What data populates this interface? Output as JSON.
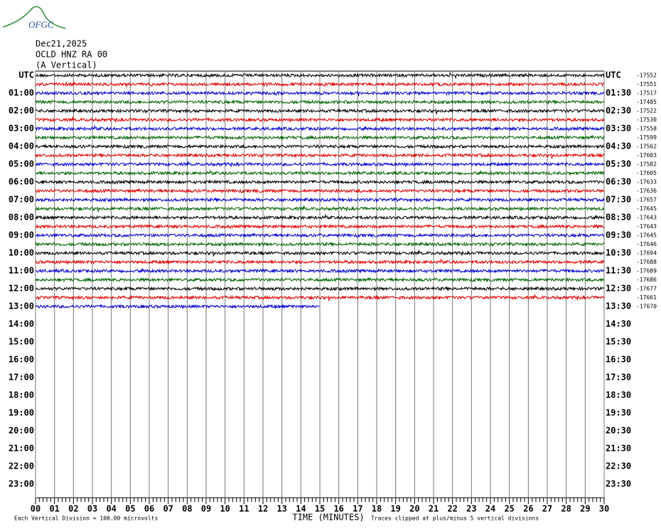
{
  "logo": "OFGC",
  "header": {
    "date": "Dec21,2025",
    "station": "OCLD HNZ RA 00",
    "component": "(A Vertical)"
  },
  "left_labels": [
    "UTC",
    "01:00",
    "02:00",
    "03:00",
    "04:00",
    "05:00",
    "06:00",
    "07:00",
    "08:00",
    "09:00",
    "10:00",
    "11:00",
    "12:00",
    "13:00",
    "14:00",
    "15:00",
    "16:00",
    "17:00",
    "18:00",
    "19:00",
    "20:00",
    "21:00",
    "22:00",
    "23:00"
  ],
  "right_labels": [
    "UTC",
    "01:30",
    "02:30",
    "03:30",
    "04:30",
    "05:30",
    "06:30",
    "07:30",
    "08:30",
    "09:30",
    "10:30",
    "11:30",
    "12:30",
    "13:30",
    "14:30",
    "15:30",
    "16:30",
    "17:30",
    "18:30",
    "19:30",
    "20:30",
    "21:30",
    "22:30",
    "23:30"
  ],
  "offsets": [
    -17552,
    -17551,
    -17517,
    -17485,
    -17522,
    -17530,
    -17558,
    -17599,
    -17562,
    -17603,
    -17582,
    -17605,
    -17633,
    -17636,
    -17657,
    -17645,
    -17643,
    -17643,
    -17645,
    -17646,
    -17694,
    -17688,
    -17689,
    -17686,
    -17677,
    -17661,
    -17670
  ],
  "x_tick_labels": [
    "00",
    "01",
    "02",
    "03",
    "04",
    "05",
    "06",
    "07",
    "08",
    "09",
    "10",
    "11",
    "12",
    "13",
    "14",
    "15",
    "16",
    "17",
    "18",
    "19",
    "20",
    "21",
    "22",
    "23",
    "24",
    "25",
    "26",
    "27",
    "28",
    "29",
    "30"
  ],
  "footer": {
    "scale": "Each Vertical Division =  100.00 microvolts",
    "axis_title": "TIME (MINUTES)",
    "clip_note": "Traces clipped at plus/minus 5 vertical divisions"
  }
}
